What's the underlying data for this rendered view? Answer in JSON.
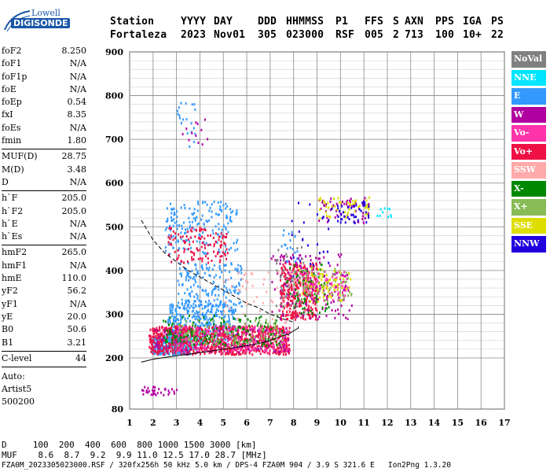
{
  "logo": {
    "brand": "Lowell",
    "product": "DIGISONDE"
  },
  "header": {
    "labels": [
      "Station",
      "YYYY",
      "DAY",
      "DDD",
      "HHMMSS",
      "P1",
      "FFS",
      "S",
      "AXN",
      "PPS",
      "IGA",
      "PS"
    ],
    "values": [
      "Fortaleza",
      "2023",
      "Nov01",
      "305",
      "023000",
      "RSF",
      "005",
      "2",
      "713",
      "100",
      "10+",
      "22"
    ]
  },
  "params": [
    [
      {
        "k": "foF2",
        "v": "8.250"
      },
      {
        "k": "foF1",
        "v": "N/A"
      },
      {
        "k": "foF1p",
        "v": "N/A"
      },
      {
        "k": "foE",
        "v": "N/A"
      },
      {
        "k": "foEp",
        "v": "0.54"
      },
      {
        "k": "fxI",
        "v": "8.35"
      },
      {
        "k": "foEs",
        "v": "N/A"
      },
      {
        "k": "fmin",
        "v": "1.80"
      }
    ],
    [
      {
        "k": "MUF(D)",
        "v": "28.75"
      },
      {
        "k": "M(D)",
        "v": "3.48"
      },
      {
        "k": "D",
        "v": "N/A"
      }
    ],
    [
      {
        "k": "h`F",
        "v": "205.0"
      },
      {
        "k": "h`F2",
        "v": "205.0"
      },
      {
        "k": "h`E",
        "v": "N/A"
      },
      {
        "k": "h`Es",
        "v": "N/A"
      }
    ],
    [
      {
        "k": "hmF2",
        "v": "265.0"
      },
      {
        "k": "hmF1",
        "v": "N/A"
      },
      {
        "k": "hmE",
        "v": "110.0"
      },
      {
        "k": "yF2",
        "v": "56.2"
      },
      {
        "k": "yF1",
        "v": "N/A"
      },
      {
        "k": "yE",
        "v": "20.0"
      },
      {
        "k": "B0",
        "v": "50.6"
      },
      {
        "k": "B1",
        "v": "3.21"
      }
    ],
    [
      {
        "k": "C-level",
        "v": "44"
      }
    ]
  ],
  "auto": {
    "line1": "Auto:",
    "line2": "Artist5",
    "line3": "500200"
  },
  "legend": [
    {
      "label": "NoVal",
      "color": "#808080"
    },
    {
      "label": "NNE",
      "color": "#00e5ff"
    },
    {
      "label": "E",
      "color": "#3399ff"
    },
    {
      "label": "W",
      "color": "#b000a0"
    },
    {
      "label": "Vo-",
      "color": "#ff33aa"
    },
    {
      "label": "Vo+",
      "color": "#ee1144"
    },
    {
      "label": "SSW",
      "color": "#ffaaaa"
    },
    {
      "label": "X-",
      "color": "#008800"
    },
    {
      "label": "X+",
      "color": "#88bb55"
    },
    {
      "label": "SSE",
      "color": "#dddd00"
    },
    {
      "label": "NNW",
      "color": "#2200dd"
    }
  ],
  "footer": {
    "line1": "D     100  200  400  600  800 1000 1500 3000 [km]",
    "line2": "MUF    8.6  8.7  9.2  9.9 11.0 12.5 17.0 28.7 [MHz]",
    "line3": "FZA0M_2023305023000.RSF / 320fx256h 50 kHz 5.0 km / DPS-4 FZA0M 904 / 3.9 S 321.6 E   Ion2Png 1.3.20"
  },
  "chart_data": {
    "type": "scatter",
    "x_ticks": [
      "1",
      "2",
      "3",
      "4",
      "5",
      "6",
      "7",
      "8",
      "9",
      "10",
      "11",
      "12",
      "13",
      "14",
      "15",
      "16",
      "17"
    ],
    "y_ticks": [
      "80",
      "200",
      "300",
      "400",
      "500",
      "600",
      "700",
      "800",
      "900"
    ],
    "xlim": [
      1,
      17
    ],
    "ylim": [
      80,
      900
    ],
    "grid": true,
    "legend_position": "right",
    "clusters": [
      {
        "series": "E",
        "x": [
          1.9,
          3.6
        ],
        "y": [
          210,
          250
        ],
        "n": 350
      },
      {
        "series": "E",
        "x": [
          2.6,
          5.5
        ],
        "y": [
          240,
          330
        ],
        "n": 380
      },
      {
        "series": "E",
        "x": [
          3.0,
          5.8
        ],
        "y": [
          320,
          420
        ],
        "n": 180
      },
      {
        "series": "E",
        "x": [
          2.5,
          5.6
        ],
        "y": [
          440,
          560
        ],
        "n": 180
      },
      {
        "series": "E",
        "x": [
          3.0,
          3.8
        ],
        "y": [
          680,
          790
        ],
        "n": 20
      },
      {
        "series": "E",
        "x": [
          7.4,
          8.2
        ],
        "y": [
          420,
          500
        ],
        "n": 20
      },
      {
        "series": "NNE",
        "x": [
          2.4,
          4.2
        ],
        "y": [
          220,
          260
        ],
        "n": 70
      },
      {
        "series": "Vo+",
        "x": [
          1.8,
          7.8
        ],
        "y": [
          210,
          275
        ],
        "n": 900
      },
      {
        "series": "Vo+",
        "x": [
          7.4,
          9.0
        ],
        "y": [
          290,
          420
        ],
        "n": 320
      },
      {
        "series": "Vo+",
        "x": [
          2.6,
          5.2
        ],
        "y": [
          420,
          500
        ],
        "n": 120
      },
      {
        "series": "Vo-",
        "x": [
          3.0,
          7.8
        ],
        "y": [
          215,
          275
        ],
        "n": 250
      },
      {
        "series": "Vo-",
        "x": [
          8.0,
          10.3
        ],
        "y": [
          330,
          400
        ],
        "n": 120
      },
      {
        "series": "W",
        "x": [
          2.0,
          7.8
        ],
        "y": [
          215,
          270
        ],
        "n": 120
      },
      {
        "series": "W",
        "x": [
          7.0,
          10.5
        ],
        "y": [
          290,
          440
        ],
        "n": 140
      },
      {
        "series": "W",
        "x": [
          9.0,
          11.2
        ],
        "y": [
          510,
          570
        ],
        "n": 60
      },
      {
        "series": "W",
        "x": [
          3.2,
          4.4
        ],
        "y": [
          680,
          760
        ],
        "n": 12
      },
      {
        "series": "W",
        "x": [
          1.5,
          3.0
        ],
        "y": [
          115,
          135
        ],
        "n": 35
      },
      {
        "series": "X-",
        "x": [
          2.4,
          7.5
        ],
        "y": [
          230,
          300
        ],
        "n": 160
      },
      {
        "series": "X-",
        "x": [
          7.6,
          9.5
        ],
        "y": [
          300,
          420
        ],
        "n": 60
      },
      {
        "series": "X+",
        "x": [
          3.0,
          7.6
        ],
        "y": [
          230,
          290
        ],
        "n": 100
      },
      {
        "series": "X+",
        "x": [
          8.0,
          10.5
        ],
        "y": [
          330,
          410
        ],
        "n": 60
      },
      {
        "series": "SSE",
        "x": [
          8.2,
          10.5
        ],
        "y": [
          330,
          410
        ],
        "n": 60
      },
      {
        "series": "SSE",
        "x": [
          9.0,
          11.2
        ],
        "y": [
          520,
          570
        ],
        "n": 50
      },
      {
        "series": "SSW",
        "x": [
          5.0,
          8.5
        ],
        "y": [
          270,
          400
        ],
        "n": 60
      },
      {
        "series": "NNW",
        "x": [
          9.5,
          11.2
        ],
        "y": [
          510,
          560
        ],
        "n": 40
      },
      {
        "series": "NNW",
        "x": [
          7.8,
          9.6
        ],
        "y": [
          380,
          580
        ],
        "n": 25
      },
      {
        "series": "NNE",
        "x": [
          11.5,
          12.2
        ],
        "y": [
          525,
          545
        ],
        "n": 10
      },
      {
        "series": "NoVal",
        "x": [
          7.2,
          8.4
        ],
        "y": [
          320,
          460
        ],
        "n": 40
      }
    ],
    "curves": [
      {
        "style": "dashed",
        "x": [
          1.5,
          2.0,
          2.5,
          3.0,
          3.5,
          4.0,
          4.5,
          5.0,
          5.5,
          6.0,
          6.5,
          7.0,
          7.5,
          8.0
        ],
        "y": [
          515,
          470,
          440,
          420,
          400,
          385,
          370,
          355,
          340,
          325,
          315,
          300,
          290,
          282
        ]
      },
      {
        "style": "solid",
        "x": [
          1.5,
          2.0,
          3.0,
          4.0,
          5.0,
          6.0,
          6.5,
          7.0,
          7.5,
          7.8,
          8.0,
          8.2,
          8.2
        ],
        "y": [
          190,
          197,
          205,
          212,
          220,
          228,
          233,
          240,
          250,
          255,
          262,
          268,
          272
        ]
      }
    ]
  }
}
